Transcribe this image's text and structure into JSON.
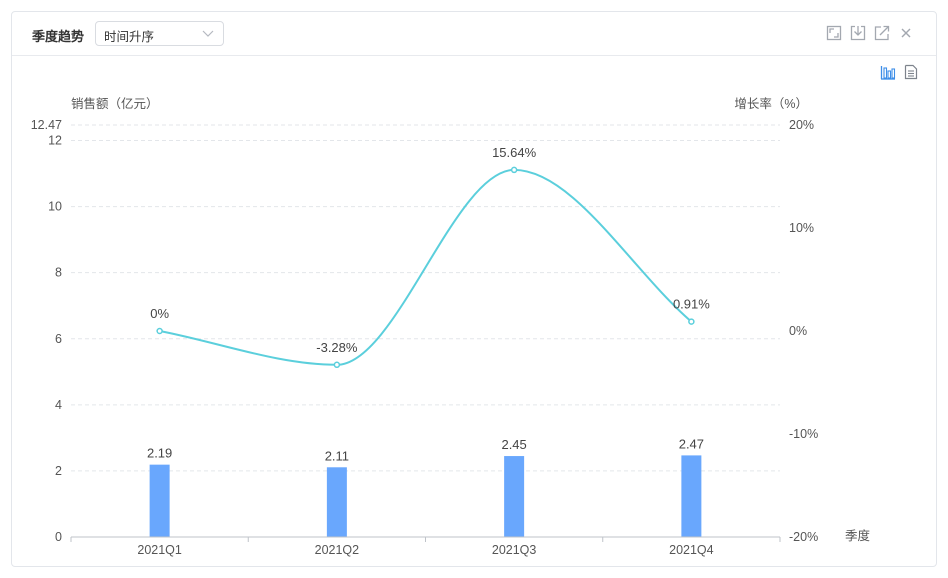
{
  "panel": {
    "title": "季度趋势",
    "sort_select": {
      "value": "时间升序"
    },
    "toolbar": {
      "icons": [
        "expand-icon",
        "download-icon",
        "open-external-icon",
        "close-icon"
      ],
      "views": [
        "bar-chart-view-icon",
        "table-view-icon"
      ]
    }
  },
  "colors": {
    "bar": "#69a7fd",
    "line": "#5bcfdc",
    "grid": "#e3e6ea",
    "active_icon": "#3d8ee8"
  },
  "chart_data": {
    "type": "bar",
    "categories": [
      "2021Q1",
      "2021Q2",
      "2021Q3",
      "2021Q4"
    ],
    "xlabel": "季度",
    "ylabel": "销售额（亿元）",
    "ylim": [
      0,
      12.47
    ],
    "yticks": [
      0,
      2,
      4,
      6,
      8,
      10,
      12,
      12.47
    ],
    "y2label": "增长率（%）",
    "y2lim": [
      -20,
      20
    ],
    "y2ticks": [
      -20,
      -10,
      0,
      10,
      20
    ],
    "y2tick_labels": [
      "-20%",
      "-10%",
      "0%",
      "10%",
      "20%"
    ],
    "grid": true,
    "legend": "none",
    "series": [
      {
        "type": "bar",
        "axis": "left",
        "values": [
          2.19,
          2.11,
          2.45,
          2.47
        ],
        "data_labels": [
          "2.19",
          "2.11",
          "2.45",
          "2.47"
        ]
      },
      {
        "type": "line",
        "axis": "right",
        "smooth": true,
        "values": [
          0,
          -3.28,
          15.64,
          0.91
        ],
        "data_labels": [
          "0%",
          "-3.28%",
          "15.64%",
          "0.91%"
        ]
      }
    ]
  }
}
